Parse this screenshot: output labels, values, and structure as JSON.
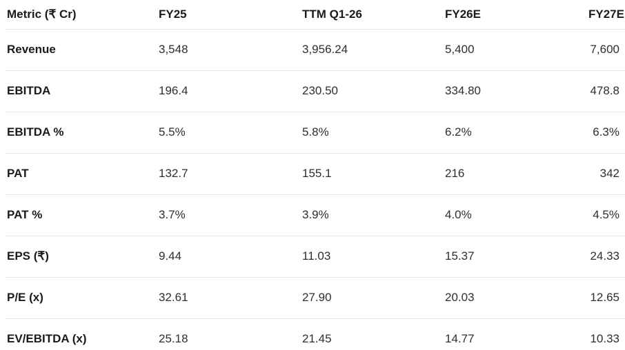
{
  "table": {
    "columns": [
      "Metric (₹ Cr)",
      "FY25",
      "TTM Q1-26",
      "FY26E",
      "FY27E"
    ],
    "rows": [
      {
        "label": "Revenue",
        "values": [
          "3,548",
          "3,956.24",
          "5,400",
          "7,600"
        ]
      },
      {
        "label": "EBITDA",
        "values": [
          "196.4",
          "230.50",
          "334.80",
          "478.8"
        ]
      },
      {
        "label": "EBITDA %",
        "values": [
          "5.5%",
          "5.8%",
          "6.2%",
          "6.3%"
        ]
      },
      {
        "label": "PAT",
        "values": [
          "132.7",
          "155.1",
          "216",
          "342"
        ]
      },
      {
        "label": "PAT %",
        "values": [
          "3.7%",
          "3.9%",
          "4.0%",
          "4.5%"
        ]
      },
      {
        "label": "EPS (₹)",
        "values": [
          "9.44",
          "11.03",
          "15.37",
          "24.33"
        ]
      },
      {
        "label": "P/E (x)",
        "values": [
          "32.61",
          "27.90",
          "20.03",
          "12.65"
        ]
      },
      {
        "label": "EV/EBITDA (x)",
        "values": [
          "25.18",
          "21.45",
          "14.77",
          "10.33"
        ]
      }
    ],
    "text_color": "#1a1a1a",
    "value_color": "#2e2e2e",
    "divider_color": "#e7e7e7"
  }
}
